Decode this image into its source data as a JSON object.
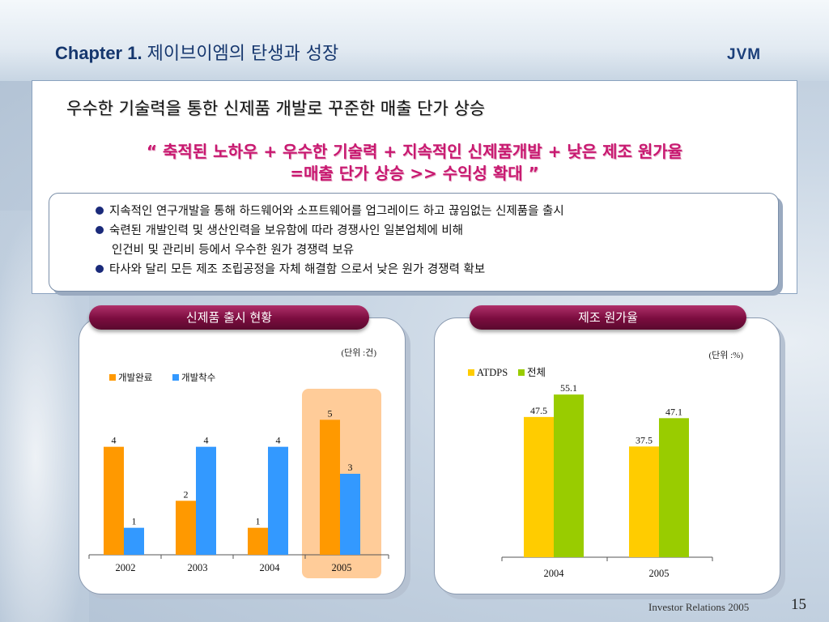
{
  "header": {
    "chapter": "Chapter 1.",
    "title_kr": "제이브이엠의  탄생과  성장",
    "logo": "JVM"
  },
  "headline": "우수한 기술력을 통한 신제품 개발로 꾸준한 매출 단가 상승",
  "slogan": {
    "line1": "“ 축적된 노하우 +  우수한 기술력 +  지속적인 신제품개발 +  낮은 제조 원가율",
    "line2": "=매출 단가 상승  >> 수익성 확대 ”"
  },
  "bullets": [
    "지속적인 연구개발을 통해 하드웨어와 소프트웨어를 업그레이드 하고 끊임없는 신제품을 출시",
    "숙련된 개발인력 및 생산인력을 보유함에 따라 경쟁사인 일본업체에 비해",
    "인건비 및 관리비 등에서 우수한 원가 경쟁력 보유",
    "타사와 달리 모든 제조 조립공정을 자체 해결함 으로서 낮은 원가 경쟁력 확보"
  ],
  "colors": {
    "orange": "#ff9900",
    "blue": "#3399ff",
    "yellow": "#ffcc00",
    "green": "#99cc00",
    "highlight": "#ffcc99",
    "pill": "#8a1450"
  },
  "chart_data": [
    {
      "type": "bar",
      "title": "신제품 출시 현황",
      "unit_note": "(단위 :건)",
      "categories": [
        "2002",
        "2003",
        "2004",
        "2005"
      ],
      "series": [
        {
          "name": "개발완료",
          "values": [
            4,
            2,
            1,
            5
          ]
        },
        {
          "name": "개발착수",
          "values": [
            1,
            4,
            4,
            3
          ]
        }
      ],
      "ylim": [
        0,
        6
      ],
      "highlight_category": "2005",
      "legend": "top-left"
    },
    {
      "type": "bar",
      "title": "제조 원가율",
      "unit_note": "(단위 :%)",
      "categories": [
        "2004",
        "2005"
      ],
      "series": [
        {
          "name": "ATDPS",
          "values": [
            47.5,
            37.5
          ]
        },
        {
          "name": "전체",
          "values": [
            55.1,
            47.1
          ]
        }
      ],
      "ylim": [
        0,
        62
      ],
      "legend": "top-left"
    }
  ],
  "footer": {
    "label": "Investor Relations 2005",
    "page": "15"
  }
}
